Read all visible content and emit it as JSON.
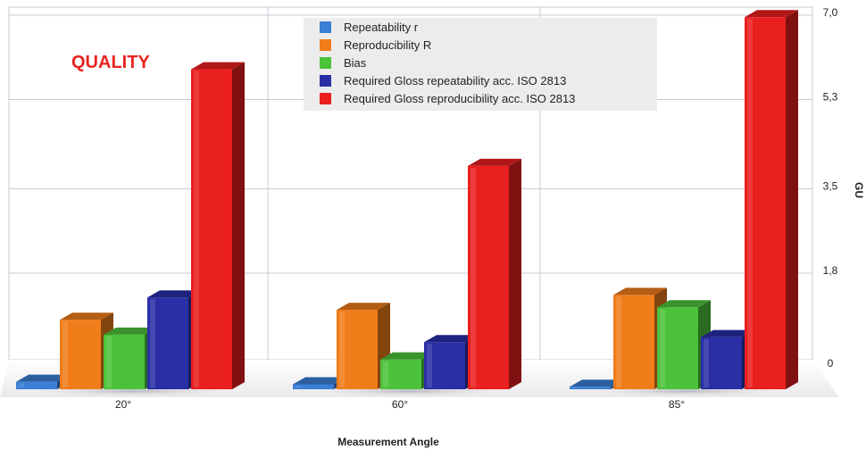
{
  "chart_data": {
    "type": "bar",
    "title": "QUALITY",
    "xlabel": "Measurement Angle",
    "ylabel": "GU",
    "categories": [
      "20°",
      "60°",
      "85°"
    ],
    "ylim": [
      0,
      7.0
    ],
    "y_ticks": [
      "0",
      "1,8",
      "3,5",
      "5,3",
      "7,0"
    ],
    "y_tick_values": [
      0,
      1.8,
      3.5,
      5.3,
      7.0
    ],
    "grid": true,
    "legend_position": "top-center",
    "series": [
      {
        "name": "Repeatability r",
        "color": "#3a7fd5",
        "values": [
          0.15,
          0.1,
          0.05
        ]
      },
      {
        "name": "Reproducibility R",
        "color": "#f07c1a",
        "values": [
          1.4,
          1.6,
          1.9
        ]
      },
      {
        "name": "Bias",
        "color": "#4cc23a",
        "values": [
          1.1,
          0.6,
          1.65
        ]
      },
      {
        "name": "Required Gloss repeatability acc. ISO 2813",
        "color": "#2a2fa6",
        "values": [
          1.85,
          0.95,
          1.05
        ]
      },
      {
        "name": "Required Gloss reproducibility acc. ISO 2813",
        "color": "#ea1f1f",
        "values": [
          6.45,
          4.5,
          7.5
        ]
      }
    ]
  }
}
